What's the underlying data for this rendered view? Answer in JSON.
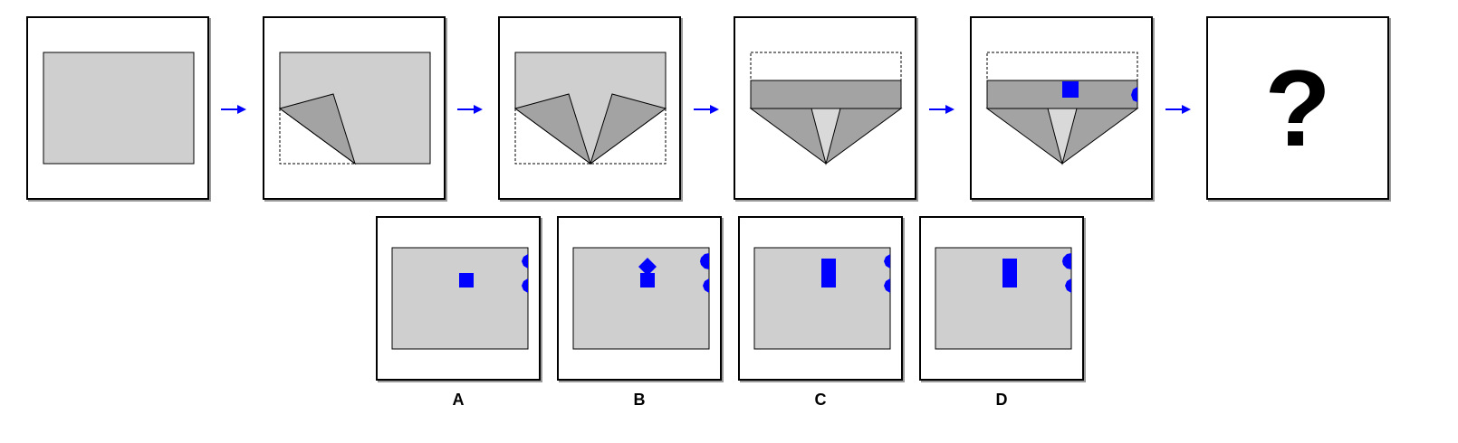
{
  "puzzle": {
    "question_mark": "?",
    "options": [
      {
        "label": "A"
      },
      {
        "label": "B"
      },
      {
        "label": "C"
      },
      {
        "label": "D"
      }
    ]
  },
  "colors": {
    "paper": "#cfcfcf",
    "fold_dark": "#a3a3a3",
    "fold_light": "#d9d9d9",
    "punch": "#0000ff",
    "arrow": "#0000ff",
    "outline": "#000000"
  }
}
